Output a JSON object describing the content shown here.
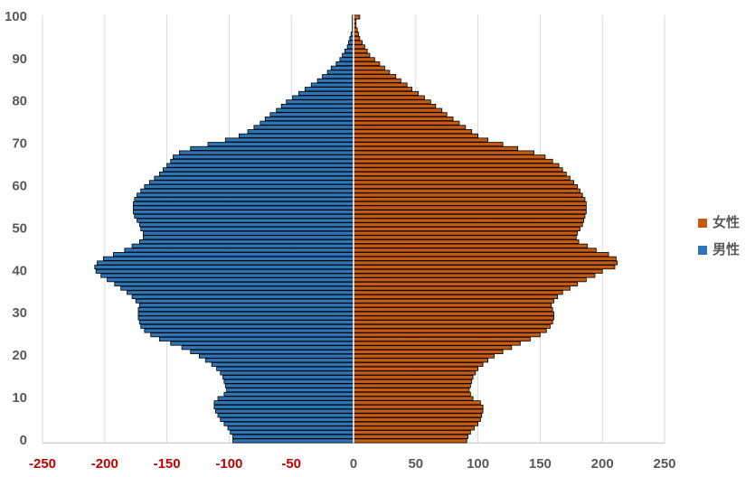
{
  "chart_data": {
    "type": "bar",
    "orientation": "horizontal",
    "y": [
      0,
      1,
      2,
      3,
      4,
      5,
      6,
      7,
      8,
      9,
      10,
      11,
      12,
      13,
      14,
      15,
      16,
      17,
      18,
      19,
      20,
      21,
      22,
      23,
      24,
      25,
      26,
      27,
      28,
      29,
      30,
      31,
      32,
      33,
      34,
      35,
      36,
      37,
      38,
      39,
      40,
      41,
      42,
      43,
      44,
      45,
      46,
      47,
      48,
      49,
      50,
      51,
      52,
      53,
      54,
      55,
      56,
      57,
      58,
      59,
      60,
      61,
      62,
      63,
      64,
      65,
      66,
      67,
      68,
      69,
      70,
      71,
      72,
      73,
      74,
      75,
      76,
      77,
      78,
      79,
      80,
      81,
      82,
      83,
      84,
      85,
      86,
      87,
      88,
      89,
      90,
      91,
      92,
      93,
      94,
      95,
      96,
      97,
      98,
      99,
      100
    ],
    "series": [
      {
        "name": "女性",
        "color": "#c55a11",
        "values": [
          91,
          92,
          94,
          97,
          100,
          102,
          103,
          104,
          104,
          102,
          96,
          94,
          93,
          94,
          95,
          96,
          98,
          100,
          104,
          108,
          113,
          120,
          127,
          134,
          142,
          150,
          155,
          158,
          160,
          161,
          161,
          160,
          159,
          161,
          164,
          168,
          174,
          180,
          187,
          194,
          200,
          210,
          212,
          211,
          205,
          195,
          188,
          181,
          179,
          180,
          182,
          184,
          185,
          186,
          187,
          187,
          187,
          186,
          184,
          182,
          180,
          177,
          174,
          171,
          168,
          165,
          160,
          154,
          145,
          132,
          120,
          108,
          100,
          95,
          90,
          85,
          80,
          75,
          71,
          66,
          62,
          57,
          52,
          47,
          43,
          38,
          34,
          29,
          25,
          21,
          17,
          13,
          11,
          9,
          7,
          5,
          4,
          3,
          2,
          2,
          5
        ]
      },
      {
        "name": "男性",
        "color": "#2e75b6",
        "values": [
          -97,
          -97,
          -99,
          -101,
          -104,
          -107,
          -109,
          -111,
          -112,
          -112,
          -109,
          -104,
          -102,
          -103,
          -104,
          -105,
          -107,
          -110,
          -114,
          -119,
          -124,
          -131,
          -138,
          -147,
          -156,
          -163,
          -168,
          -171,
          -172,
          -173,
          -173,
          -173,
          -172,
          -175,
          -178,
          -182,
          -187,
          -192,
          -198,
          -203,
          -207,
          -208,
          -206,
          -201,
          -193,
          -184,
          -178,
          -172,
          -169,
          -169,
          -171,
          -172,
          -174,
          -176,
          -177,
          -177,
          -177,
          -176,
          -174,
          -171,
          -168,
          -164,
          -160,
          -156,
          -153,
          -150,
          -147,
          -145,
          -140,
          -131,
          -117,
          -103,
          -92,
          -85,
          -80,
          -75,
          -71,
          -67,
          -62,
          -58,
          -54,
          -49,
          -44,
          -39,
          -34,
          -29,
          -25,
          -21,
          -18,
          -14,
          -11,
          -9,
          -7,
          -5,
          -4,
          -3,
          -2,
          -1,
          -1,
          -1,
          -1
        ]
      }
    ],
    "xlim": [
      -250,
      250
    ],
    "xticks": [
      -250,
      -200,
      -150,
      -100,
      -50,
      0,
      50,
      100,
      150,
      200,
      250
    ],
    "negative_tick_color": "#c00000",
    "ylim": [
      -0.5,
      100.5
    ],
    "yticks": [
      0,
      10,
      20,
      30,
      40,
      50,
      60,
      70,
      80,
      90,
      100
    ],
    "grid": true,
    "legend": "right"
  }
}
